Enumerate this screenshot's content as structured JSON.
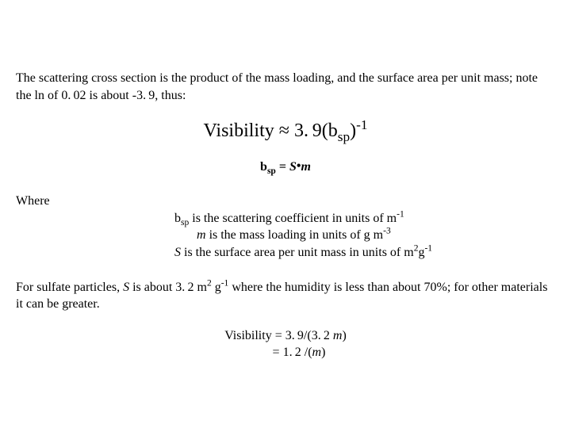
{
  "intro": "The scattering cross section is the product of the mass loading, and the surface area per unit mass; note the ln of 0. 02 is about -3. 9, thus:",
  "main_eq": {
    "lhs": "Visibility",
    "approx": "≈",
    "coef": "3. 9(b",
    "sub": "sp",
    "tail": ")",
    "exp": "-1"
  },
  "sub_eq": {
    "bvar": "b",
    "bsub": "sp",
    "eq": " = ",
    "S": "S",
    "dot": "•",
    "m": "m"
  },
  "where_label": "Where",
  "def1": {
    "pre": "b",
    "sub": "sp",
    "mid": " is the scattering coefficient in units of m",
    "exp": "-1"
  },
  "def2": {
    "m": "m",
    "mid": " is the mass loading in units of g m",
    "exp": "-3"
  },
  "def3": {
    "S": "S",
    "mid": " is the surface area per unit mass in units of m",
    "exp1": "2",
    "g": "g",
    "exp2": "-1"
  },
  "sulfate": {
    "pre": "For sulfate particles, ",
    "S": "S",
    "mid1": " is about 3. 2 m",
    "exp1": "2",
    "mid2": " g",
    "exp2": "-1",
    "tail": " where the humidity is less than about 70%; for other materials it can be greater."
  },
  "final": {
    "line1_pre": "Visibility = 3. 9/(3. 2 ",
    "line1_m": "m",
    "line1_post": ")",
    "line2_pre": "= 1. 2 /(",
    "line2_m": "m",
    "line2_post": ")"
  }
}
